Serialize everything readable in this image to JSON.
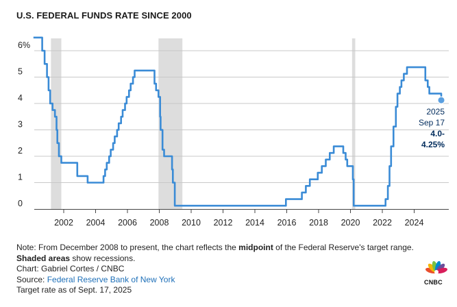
{
  "chart_data": {
    "type": "line",
    "title": "U.S. FEDERAL FUNDS RATE SINCE 2000",
    "ylabel": "",
    "xlabel": "",
    "ylim": [
      0,
      6.5
    ],
    "xlim": [
      2000.0,
      2026.3
    ],
    "y_ticks": [
      {
        "value": 6,
        "label": "6%"
      },
      {
        "value": 5,
        "label": "5"
      },
      {
        "value": 4,
        "label": "4"
      },
      {
        "value": 3,
        "label": "3"
      },
      {
        "value": 2,
        "label": "2"
      },
      {
        "value": 1,
        "label": "1"
      },
      {
        "value": 0,
        "label": "0"
      }
    ],
    "x_ticks": [
      {
        "value": 2002,
        "label": "2002"
      },
      {
        "value": 2004,
        "label": "2004"
      },
      {
        "value": 2006,
        "label": "2006"
      },
      {
        "value": 2008,
        "label": "2008"
      },
      {
        "value": 2010,
        "label": "2010"
      },
      {
        "value": 2012,
        "label": "2012"
      },
      {
        "value": 2014,
        "label": "2014"
      },
      {
        "value": 2016,
        "label": "2016"
      },
      {
        "value": 2018,
        "label": "2018"
      },
      {
        "value": 2020,
        "label": "2020"
      },
      {
        "value": 2022,
        "label": "2022"
      },
      {
        "value": 2024,
        "label": "2024"
      }
    ],
    "recessions": [
      {
        "start": 2001.2,
        "end": 2001.85
      },
      {
        "start": 2007.95,
        "end": 2009.45
      },
      {
        "start": 2020.1,
        "end": 2020.3
      }
    ],
    "series": [
      {
        "name": "Federal funds rate",
        "points": [
          [
            2000.1,
            6.5
          ],
          [
            2000.65,
            6.5
          ],
          [
            2000.65,
            6.0
          ],
          [
            2000.8,
            6.0
          ],
          [
            2000.8,
            5.5
          ],
          [
            2000.95,
            5.5
          ],
          [
            2000.95,
            5.0
          ],
          [
            2001.05,
            5.0
          ],
          [
            2001.05,
            4.5
          ],
          [
            2001.15,
            4.5
          ],
          [
            2001.15,
            4.0
          ],
          [
            2001.3,
            4.0
          ],
          [
            2001.3,
            3.75
          ],
          [
            2001.45,
            3.75
          ],
          [
            2001.45,
            3.5
          ],
          [
            2001.55,
            3.5
          ],
          [
            2001.55,
            3.0
          ],
          [
            2001.6,
            3.0
          ],
          [
            2001.6,
            2.5
          ],
          [
            2001.7,
            2.5
          ],
          [
            2001.7,
            2.0
          ],
          [
            2001.85,
            2.0
          ],
          [
            2001.85,
            1.75
          ],
          [
            2002.85,
            1.75
          ],
          [
            2002.85,
            1.25
          ],
          [
            2003.5,
            1.25
          ],
          [
            2003.5,
            1.0
          ],
          [
            2004.5,
            1.0
          ],
          [
            2004.5,
            1.25
          ],
          [
            2004.6,
            1.25
          ],
          [
            2004.6,
            1.5
          ],
          [
            2004.7,
            1.5
          ],
          [
            2004.7,
            1.75
          ],
          [
            2004.85,
            1.75
          ],
          [
            2004.85,
            2.0
          ],
          [
            2004.95,
            2.0
          ],
          [
            2004.95,
            2.25
          ],
          [
            2005.1,
            2.25
          ],
          [
            2005.1,
            2.5
          ],
          [
            2005.2,
            2.5
          ],
          [
            2005.2,
            2.75
          ],
          [
            2005.35,
            2.75
          ],
          [
            2005.35,
            3.0
          ],
          [
            2005.45,
            3.0
          ],
          [
            2005.45,
            3.25
          ],
          [
            2005.6,
            3.25
          ],
          [
            2005.6,
            3.5
          ],
          [
            2005.7,
            3.5
          ],
          [
            2005.7,
            3.75
          ],
          [
            2005.85,
            3.75
          ],
          [
            2005.85,
            4.0
          ],
          [
            2005.95,
            4.0
          ],
          [
            2005.95,
            4.25
          ],
          [
            2006.1,
            4.25
          ],
          [
            2006.1,
            4.5
          ],
          [
            2006.2,
            4.5
          ],
          [
            2006.2,
            4.75
          ],
          [
            2006.35,
            4.75
          ],
          [
            2006.35,
            5.0
          ],
          [
            2006.45,
            5.0
          ],
          [
            2006.45,
            5.25
          ],
          [
            2007.7,
            5.25
          ],
          [
            2007.7,
            4.75
          ],
          [
            2007.8,
            4.75
          ],
          [
            2007.8,
            4.5
          ],
          [
            2007.95,
            4.5
          ],
          [
            2007.95,
            4.25
          ],
          [
            2008.05,
            4.25
          ],
          [
            2008.05,
            3.5
          ],
          [
            2008.08,
            3.5
          ],
          [
            2008.08,
            3.0
          ],
          [
            2008.2,
            3.0
          ],
          [
            2008.2,
            2.25
          ],
          [
            2008.3,
            2.25
          ],
          [
            2008.3,
            2.0
          ],
          [
            2008.8,
            2.0
          ],
          [
            2008.8,
            1.5
          ],
          [
            2008.85,
            1.5
          ],
          [
            2008.85,
            1.0
          ],
          [
            2008.97,
            1.0
          ],
          [
            2008.97,
            0.125
          ],
          [
            2015.95,
            0.125
          ],
          [
            2015.95,
            0.375
          ],
          [
            2016.95,
            0.375
          ],
          [
            2016.95,
            0.625
          ],
          [
            2017.2,
            0.625
          ],
          [
            2017.2,
            0.875
          ],
          [
            2017.45,
            0.875
          ],
          [
            2017.45,
            1.125
          ],
          [
            2017.95,
            1.125
          ],
          [
            2017.95,
            1.375
          ],
          [
            2018.2,
            1.375
          ],
          [
            2018.2,
            1.625
          ],
          [
            2018.45,
            1.625
          ],
          [
            2018.45,
            1.875
          ],
          [
            2018.7,
            1.875
          ],
          [
            2018.7,
            2.125
          ],
          [
            2018.95,
            2.125
          ],
          [
            2018.95,
            2.375
          ],
          [
            2019.55,
            2.375
          ],
          [
            2019.55,
            2.125
          ],
          [
            2019.7,
            2.125
          ],
          [
            2019.7,
            1.875
          ],
          [
            2019.8,
            1.875
          ],
          [
            2019.8,
            1.625
          ],
          [
            2020.15,
            1.625
          ],
          [
            2020.15,
            1.125
          ],
          [
            2020.2,
            1.125
          ],
          [
            2020.2,
            0.125
          ],
          [
            2022.2,
            0.125
          ],
          [
            2022.2,
            0.375
          ],
          [
            2022.35,
            0.375
          ],
          [
            2022.35,
            0.875
          ],
          [
            2022.45,
            0.875
          ],
          [
            2022.45,
            1.625
          ],
          [
            2022.55,
            1.625
          ],
          [
            2022.55,
            2.375
          ],
          [
            2022.7,
            2.375
          ],
          [
            2022.7,
            3.125
          ],
          [
            2022.85,
            3.125
          ],
          [
            2022.85,
            3.875
          ],
          [
            2022.95,
            3.875
          ],
          [
            2022.95,
            4.375
          ],
          [
            2023.1,
            4.375
          ],
          [
            2023.1,
            4.625
          ],
          [
            2023.2,
            4.625
          ],
          [
            2023.2,
            4.875
          ],
          [
            2023.35,
            4.875
          ],
          [
            2023.35,
            5.125
          ],
          [
            2023.55,
            5.125
          ],
          [
            2023.55,
            5.375
          ],
          [
            2024.7,
            5.375
          ],
          [
            2024.7,
            4.875
          ],
          [
            2024.85,
            4.875
          ],
          [
            2024.85,
            4.625
          ],
          [
            2024.95,
            4.625
          ],
          [
            2024.95,
            4.375
          ],
          [
            2025.7,
            4.375
          ],
          [
            2025.7,
            4.125
          ]
        ]
      }
    ],
    "annotation": {
      "x": 2025.7,
      "y": 4.125,
      "year": "2025",
      "date": "Sep 17",
      "value_line1": "4.0-",
      "value_line2": "4.25%"
    },
    "colors": {
      "line": "#3a8bd6",
      "recession": "#dddddd",
      "grid": "#c8c8c8",
      "marker": "#5a9fe0",
      "callout": "#002b5c"
    }
  },
  "notes": {
    "note_prefix": "Note: From December 2008 to present, the chart reflects the ",
    "note_bold1": "midpoint",
    "note_mid": " of the Federal Reserve's target range. ",
    "note_bold2": "Shaded areas",
    "note_suffix": " show recessions.",
    "credit": "Chart: Gabriel Cortes / CNBC",
    "source_label": "Source: ",
    "source_link": "Federal Reserve Bank of New York",
    "target_rate": "Target rate as of Sept. 17, 2025"
  },
  "brand": {
    "logo_text": "CNBC",
    "logo_colors": [
      "#e94e2d",
      "#f7b600",
      "#7ac143",
      "#0089cf",
      "#6c4e9a",
      "#d81e5b"
    ]
  }
}
